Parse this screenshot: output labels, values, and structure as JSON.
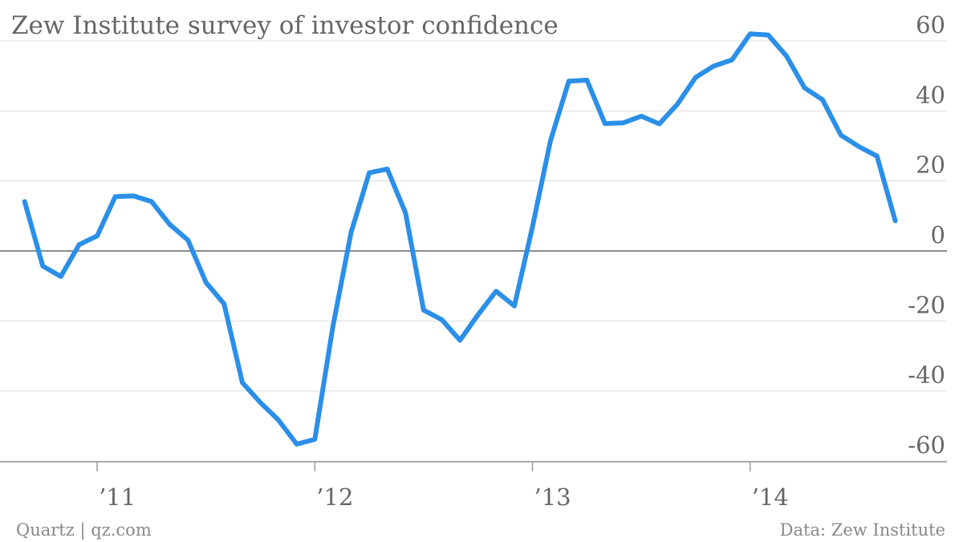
{
  "chart_data": {
    "type": "line",
    "title": "Zew Institute survey of investor confidence",
    "xlabel": "",
    "ylabel": "",
    "x_range": [
      2010.62,
      2014.72
    ],
    "ylim": [
      -60,
      60
    ],
    "yticks": [
      60,
      40,
      20,
      0,
      -20,
      -40,
      -60
    ],
    "xticks": [
      {
        "value": 2011,
        "label": "’11"
      },
      {
        "value": 2012,
        "label": "’12"
      },
      {
        "value": 2013,
        "label": "’13"
      },
      {
        "value": 2014,
        "label": "’14"
      }
    ],
    "grid": true,
    "legend": "none",
    "series": [
      {
        "color": "#2b8fe8",
        "x": [
          2010.667,
          2010.75,
          2010.833,
          2010.917,
          2011.0,
          2011.083,
          2011.167,
          2011.25,
          2011.333,
          2011.417,
          2011.5,
          2011.583,
          2011.667,
          2011.75,
          2011.833,
          2011.917,
          2012.0,
          2012.083,
          2012.167,
          2012.25,
          2012.333,
          2012.417,
          2012.5,
          2012.583,
          2012.667,
          2012.75,
          2012.833,
          2012.917,
          2013.0,
          2013.083,
          2013.167,
          2013.25,
          2013.333,
          2013.417,
          2013.5,
          2013.583,
          2013.667,
          2013.75,
          2013.833,
          2013.917,
          2014.0,
          2014.083,
          2014.167,
          2014.25,
          2014.333,
          2014.417,
          2014.5,
          2014.583,
          2014.667
        ],
        "values": [
          14.1,
          -4.3,
          -7.3,
          1.8,
          4.3,
          15.5,
          15.7,
          14.1,
          7.6,
          3.1,
          -9.0,
          -15.1,
          -37.6,
          -43.3,
          -48.3,
          -55.2,
          -53.8,
          -21.6,
          5.4,
          22.3,
          23.4,
          10.8,
          -16.9,
          -19.6,
          -25.5,
          -18.2,
          -11.5,
          -15.7,
          6.9,
          31.5,
          48.5,
          48.8,
          36.4,
          36.6,
          38.5,
          36.3,
          42.0,
          49.6,
          52.8,
          54.6,
          62.0,
          61.7,
          55.7,
          46.6,
          43.2,
          33.1,
          29.8,
          27.1,
          8.6
        ]
      }
    ]
  },
  "footer": {
    "left": "Quartz | qz.com",
    "right": "Data: Zew Institute"
  }
}
